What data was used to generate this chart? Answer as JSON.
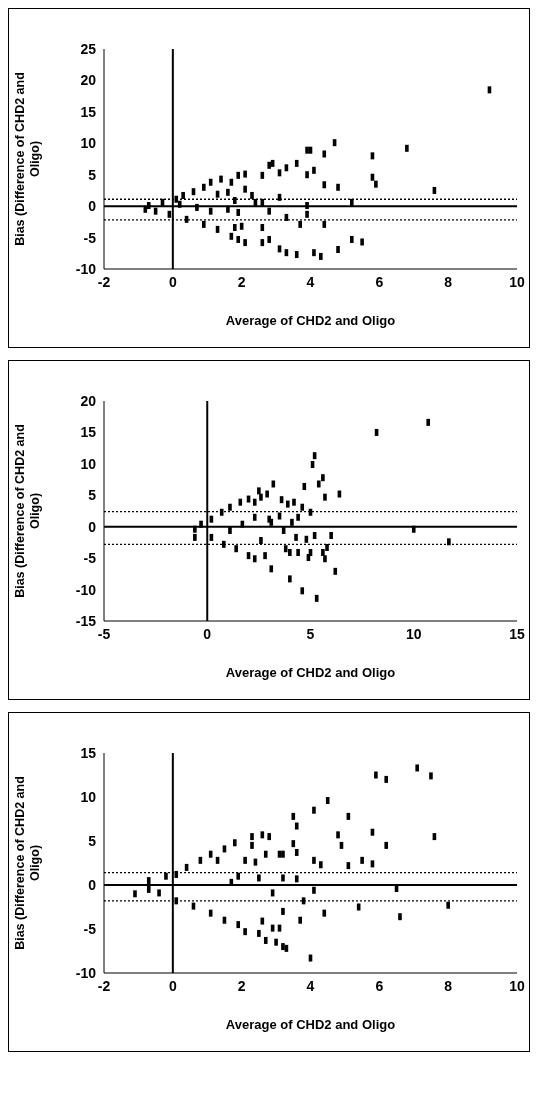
{
  "chart_data": [
    {
      "type": "scatter",
      "xlabel": "Average of CHD2 and Oligo",
      "ylabel": "Bias (Difference of CHD2 and Oligo)",
      "color": "#000000",
      "marker": "square",
      "xlim": [
        -2,
        10
      ],
      "xticks": [
        -2,
        0,
        2,
        4,
        6,
        8,
        10
      ],
      "ylim": [
        -10,
        25
      ],
      "yticks": [
        -10,
        -5,
        0,
        5,
        10,
        15,
        20,
        25
      ],
      "ref_lines": [
        {
          "axis": "y",
          "value": 0,
          "line_style": "solid",
          "color": "#000000"
        },
        {
          "axis": "x",
          "value": 0,
          "line_style": "solid",
          "color": "#000000"
        },
        {
          "axis": "y",
          "value": 1.1,
          "line_style": "dotted",
          "color": "#000000"
        },
        {
          "axis": "y",
          "value": -2.2,
          "line_style": "dotted",
          "color": "#000000"
        }
      ],
      "x": [
        9.2,
        6.8,
        5.8,
        5.8,
        5.9,
        7.6,
        4.7,
        4.4,
        3.9,
        4.0,
        4.4,
        4.8,
        4.1,
        3.9,
        3.6,
        3.3,
        3.1,
        2.9,
        2.8,
        2.6,
        5.2,
        5.2,
        5.5,
        4.8,
        4.3,
        4.1,
        3.6,
        3.3,
        3.1,
        2.8,
        2.6,
        2.6,
        3.3,
        3.7,
        3.9,
        4.4,
        2.8,
        2.6,
        3.1,
        2.1,
        2.0,
        1.8,
        1.9,
        2.1,
        2.1,
        1.9,
        1.7,
        1.4,
        1.6,
        1.3,
        1.1,
        0.9,
        0.6,
        0.3,
        0.1,
        -0.3,
        -0.7,
        -0.8,
        -0.5,
        -0.1,
        0.4,
        0.9,
        1.3,
        1.7,
        1.9,
        1.1,
        0.7,
        0.2,
        1.6,
        1.8,
        2.4,
        2.3,
        3.9
      ],
      "values": [
        18.5,
        9.2,
        8.0,
        4.6,
        3.5,
        2.5,
        10.1,
        8.3,
        8.9,
        8.9,
        3.4,
        3.0,
        5.7,
        5.0,
        6.8,
        6.1,
        5.3,
        6.8,
        6.5,
        4.9,
        0.6,
        -5.3,
        -5.7,
        -6.9,
        -8.0,
        -7.4,
        -7.7,
        -7.4,
        -6.8,
        -5.3,
        -5.8,
        -3.4,
        -1.8,
        -2.9,
        -1.3,
        -2.9,
        -0.8,
        0.6,
        1.4,
        -5.8,
        -3.2,
        -3.4,
        -1.0,
        2.7,
        5.1,
        4.9,
        3.8,
        4.3,
        2.2,
        1.9,
        3.8,
        3.0,
        2.3,
        1.7,
        1.1,
        0.6,
        0.1,
        -0.5,
        -0.8,
        -1.3,
        -2.1,
        -2.9,
        -3.7,
        -4.8,
        -5.3,
        -0.8,
        -0.2,
        0.3,
        -0.5,
        0.9,
        0.6,
        1.7,
        0.1
      ]
    },
    {
      "type": "scatter",
      "xlabel": "Average of CHD2 and Oligo",
      "ylabel": "Bias (Difference of CHD2 and Oligo)",
      "color": "#000000",
      "marker": "square",
      "xlim": [
        -5,
        15
      ],
      "xticks": [
        -5,
        0,
        5,
        10,
        15
      ],
      "ylim": [
        -15,
        20
      ],
      "yticks": [
        -15,
        -10,
        -5,
        0,
        5,
        10,
        15,
        20
      ],
      "ref_lines": [
        {
          "axis": "y",
          "value": 0,
          "line_style": "solid",
          "color": "#000000"
        },
        {
          "axis": "x",
          "value": 0,
          "line_style": "solid",
          "color": "#000000"
        },
        {
          "axis": "y",
          "value": 2.4,
          "line_style": "dotted",
          "color": "#000000"
        },
        {
          "axis": "y",
          "value": -2.8,
          "line_style": "dotted",
          "color": "#000000"
        }
      ],
      "x": [
        10.7,
        8.2,
        11.7,
        10.0,
        5.2,
        5.1,
        5.6,
        5.4,
        4.7,
        5.7,
        6.4,
        5.0,
        4.6,
        4.2,
        3.9,
        3.6,
        3.5,
        3.7,
        3.2,
        2.9,
        2.6,
        2.5,
        2.3,
        2.0,
        1.6,
        1.1,
        0.7,
        0.2,
        -0.3,
        -0.6,
        -0.6,
        0.2,
        0.8,
        1.4,
        2.0,
        2.3,
        2.8,
        3.1,
        2.6,
        3.1,
        3.0,
        1.7,
        1.1,
        2.3,
        4.0,
        4.6,
        5.3,
        6.2,
        5.7,
        5.6,
        5.0,
        4.4,
        4.0,
        3.8,
        4.8,
        5.2,
        5.8,
        6.0,
        4.3,
        4.9,
        4.1,
        4.4
      ],
      "values": [
        16.6,
        15.0,
        -2.4,
        -0.4,
        11.3,
        9.9,
        7.8,
        6.8,
        6.4,
        4.7,
        5.2,
        2.3,
        3.1,
        3.9,
        3.6,
        4.3,
        1.7,
        -0.6,
        6.8,
        5.2,
        4.7,
        5.7,
        3.9,
        4.4,
        3.9,
        3.1,
        2.3,
        1.2,
        0.4,
        -0.4,
        -1.7,
        -1.7,
        -2.8,
        -3.5,
        -4.6,
        -5.1,
        -4.6,
        -6.7,
        -2.2,
        0.7,
        1.2,
        0.4,
        -0.6,
        1.5,
        -8.3,
        -10.2,
        -11.4,
        -7.1,
        -5.1,
        -4.1,
        -4.1,
        -4.1,
        -4.1,
        -3.5,
        -2.0,
        -1.4,
        -3.3,
        -1.4,
        -1.7,
        -4.9,
        0.7,
        1.5
      ]
    },
    {
      "type": "scatter",
      "xlabel": "Average of CHD2 and Oligo",
      "ylabel": "Bias (Difference of CHD2 and Oligo)",
      "color": "#000000",
      "marker": "square",
      "xlim": [
        -2,
        10
      ],
      "xticks": [
        -2,
        0,
        2,
        4,
        6,
        8,
        10
      ],
      "ylim": [
        -10,
        15
      ],
      "yticks": [
        -10,
        -5,
        0,
        5,
        10,
        15
      ],
      "ref_lines": [
        {
          "axis": "y",
          "value": 0,
          "line_style": "solid",
          "color": "#000000"
        },
        {
          "axis": "x",
          "value": 0,
          "line_style": "solid",
          "color": "#000000"
        },
        {
          "axis": "y",
          "value": 1.4,
          "line_style": "dotted",
          "color": "#000000"
        },
        {
          "axis": "y",
          "value": -1.8,
          "line_style": "dotted",
          "color": "#000000"
        }
      ],
      "x": [
        7.1,
        7.5,
        5.9,
        6.2,
        4.5,
        4.1,
        5.1,
        3.5,
        3.6,
        5.8,
        7.6,
        4.8,
        4.9,
        6.2,
        3.5,
        3.6,
        2.6,
        2.8,
        2.3,
        2.3,
        1.8,
        1.5,
        2.7,
        3.1,
        3.2,
        4.1,
        4.3,
        5.1,
        5.5,
        5.8,
        2.4,
        2.1,
        1.3,
        1.1,
        0.8,
        0.4,
        0.1,
        -0.2,
        -0.7,
        -1.1,
        -0.7,
        -0.4,
        0.1,
        0.6,
        1.1,
        1.5,
        1.9,
        2.1,
        2.5,
        2.7,
        3.0,
        3.2,
        3.3,
        4.0,
        3.1,
        2.9,
        2.6,
        3.2,
        3.7,
        3.8,
        4.4,
        4.1,
        5.4,
        6.5,
        6.6,
        8.0,
        2.9,
        3.2,
        3.6,
        2.5,
        1.9,
        1.7
      ],
      "values": [
        13.3,
        12.4,
        12.5,
        12.0,
        9.6,
        8.5,
        7.8,
        7.8,
        6.7,
        6.0,
        5.5,
        5.7,
        4.5,
        4.5,
        4.7,
        3.7,
        5.7,
        5.5,
        5.5,
        4.5,
        4.8,
        4.1,
        3.5,
        3.5,
        3.5,
        2.8,
        2.3,
        2.2,
        2.8,
        2.4,
        2.6,
        2.8,
        2.8,
        3.5,
        2.8,
        2.0,
        1.2,
        1.0,
        0.5,
        -1.0,
        -0.5,
        -0.9,
        -1.8,
        -2.4,
        -3.2,
        -4.0,
        -4.5,
        -5.3,
        -5.5,
        -6.3,
        -6.5,
        -7.0,
        -7.2,
        -8.3,
        -4.9,
        -4.9,
        -4.1,
        -3.0,
        -4.0,
        -1.8,
        -3.2,
        -0.6,
        -2.5,
        -0.4,
        -3.6,
        -2.3,
        -0.9,
        0.8,
        0.7,
        0.8,
        1.0,
        0.3
      ]
    }
  ]
}
